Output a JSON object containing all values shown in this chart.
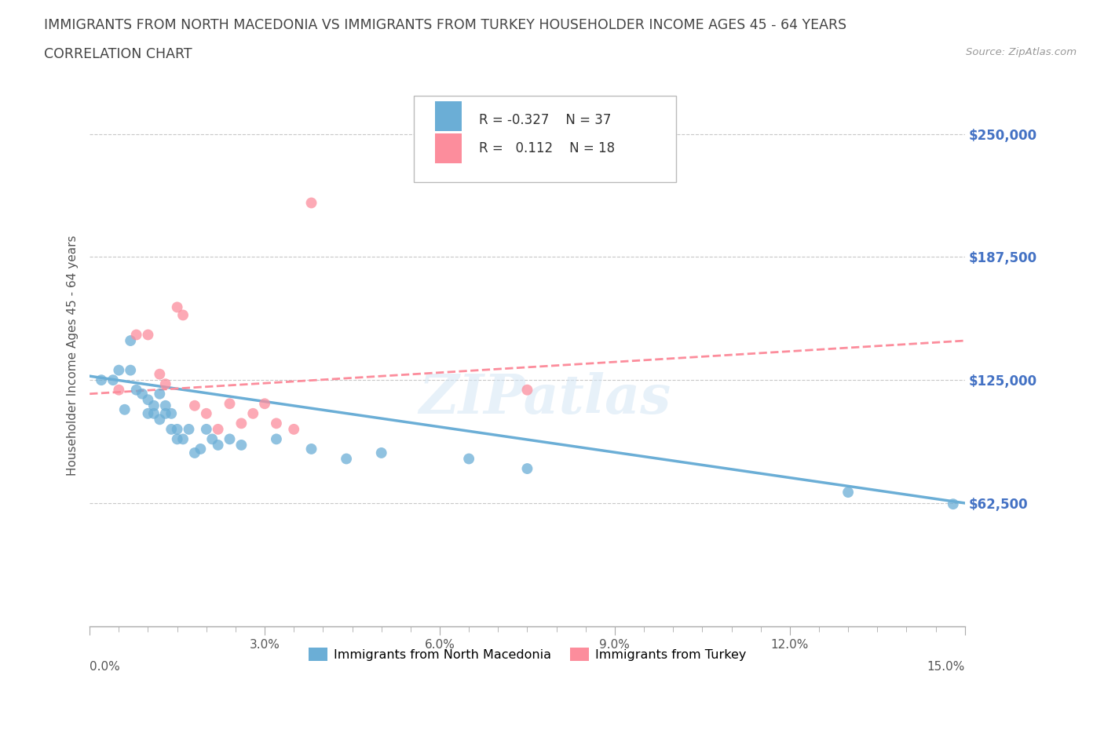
{
  "title_line1": "IMMIGRANTS FROM NORTH MACEDONIA VS IMMIGRANTS FROM TURKEY HOUSEHOLDER INCOME AGES 45 - 64 YEARS",
  "title_line2": "CORRELATION CHART",
  "source_text": "Source: ZipAtlas.com",
  "ylabel": "Householder Income Ages 45 - 64 years",
  "xlabel_ticks": [
    "0.0%",
    "",
    "",
    "",
    "",
    "",
    "3.0%",
    "",
    "",
    "",
    "",
    "",
    "6.0%",
    "",
    "",
    "",
    "",
    "",
    "9.0%",
    "",
    "",
    "",
    "",
    "",
    "12.0%",
    "",
    "",
    "",
    "",
    "",
    "15.0%"
  ],
  "xlabel_vals": [
    0.0,
    0.5,
    1.0,
    1.5,
    2.0,
    2.5,
    3.0,
    3.5,
    4.0,
    4.5,
    5.0,
    5.5,
    6.0,
    6.5,
    7.0,
    7.5,
    8.0,
    8.5,
    9.0,
    9.5,
    10.0,
    10.5,
    11.0,
    11.5,
    12.0,
    12.5,
    13.0,
    13.5,
    14.0,
    14.5,
    15.0
  ],
  "ytick_vals": [
    0,
    62500,
    125000,
    187500,
    250000
  ],
  "ytick_labels": [
    "",
    "$62,500",
    "$125,000",
    "$187,500",
    "$250,000"
  ],
  "xlim": [
    0.0,
    15.0
  ],
  "ylim": [
    0,
    275000
  ],
  "macedonia_color": "#6baed6",
  "turkey_color": "#fc8d9c",
  "macedonia_R": -0.327,
  "macedonia_N": 37,
  "turkey_R": 0.112,
  "turkey_N": 18,
  "legend_label_1": "Immigrants from North Macedonia",
  "legend_label_2": "Immigrants from Turkey",
  "watermark": "ZIPatlas",
  "grid_color": "#c8c8c8",
  "axis_label_color": "#4472c4",
  "title_color": "#555555",
  "macedonia_x": [
    0.2,
    0.4,
    0.5,
    0.6,
    0.7,
    0.7,
    0.8,
    0.9,
    1.0,
    1.0,
    1.1,
    1.1,
    1.2,
    1.2,
    1.3,
    1.3,
    1.4,
    1.4,
    1.5,
    1.5,
    1.6,
    1.7,
    1.8,
    1.9,
    2.0,
    2.1,
    2.2,
    2.4,
    2.6,
    3.2,
    3.8,
    4.4,
    5.0,
    6.5,
    7.5,
    13.0,
    14.8
  ],
  "macedonia_y": [
    125000,
    125000,
    130000,
    110000,
    145000,
    130000,
    120000,
    118000,
    115000,
    108000,
    112000,
    108000,
    118000,
    105000,
    112000,
    108000,
    100000,
    108000,
    95000,
    100000,
    95000,
    100000,
    88000,
    90000,
    100000,
    95000,
    92000,
    95000,
    92000,
    95000,
    90000,
    85000,
    88000,
    85000,
    80000,
    68000,
    62000
  ],
  "turkey_x": [
    0.5,
    0.8,
    1.0,
    1.2,
    1.3,
    1.5,
    1.6,
    1.8,
    2.0,
    2.2,
    2.4,
    2.6,
    2.8,
    3.0,
    3.5,
    3.8,
    7.5,
    3.2
  ],
  "turkey_y": [
    120000,
    148000,
    148000,
    128000,
    123000,
    162000,
    158000,
    112000,
    108000,
    100000,
    113000,
    103000,
    108000,
    113000,
    100000,
    215000,
    120000,
    103000
  ],
  "mac_line_x0": 0.0,
  "mac_line_y0": 127000,
  "mac_line_x1": 15.0,
  "mac_line_y1": 62500,
  "tur_line_x0": 0.0,
  "tur_line_y0": 118000,
  "tur_line_x1": 15.0,
  "tur_line_y1": 145000
}
